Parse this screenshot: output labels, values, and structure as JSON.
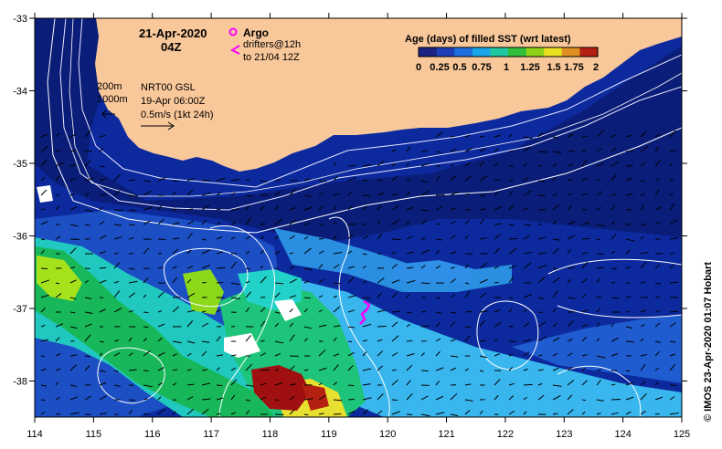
{
  "map": {
    "date_title": "21-Apr-2020",
    "time_title": "04Z",
    "argo_label": "Argo",
    "drifters_label": "drifters@12h",
    "drifters_to": "to 21/04 12Z",
    "contour_200": "200m",
    "contour_1000": "1000m",
    "product": "NRT00 GSL",
    "product_date": "19-Apr 06:00Z",
    "vector_scale": "0.5m/s (1kt 24h)",
    "credit": "© IMOS 23-Apr-2020 01:07 Hobart",
    "colorbar_title": "Age (days) of filled SST (wrt latest)",
    "colorbar_ticks": [
      "0",
      "0.25",
      "0.5",
      "0.75",
      "1",
      "1.25",
      "1.5",
      "1.75",
      "2"
    ],
    "colorbar_colors": [
      "#1a2480",
      "#1e3fb8",
      "#1f6fe0",
      "#18a6e8",
      "#20c8a0",
      "#2fbf3a",
      "#8ed21a",
      "#e8e020",
      "#e09020",
      "#b42012"
    ],
    "lon_labels": [
      "114",
      "115",
      "116",
      "117",
      "118",
      "119",
      "120",
      "121",
      "122",
      "123",
      "124",
      "125"
    ],
    "lat_labels": [
      "-33",
      "-34",
      "-35",
      "-36",
      "-37",
      "-38"
    ],
    "colors": {
      "land": "#f8c79a",
      "deep_navy": "#0a1a6e",
      "dark_blue": "#0b2a9c",
      "mid_blue": "#1d4fc8",
      "light_blue": "#38b8f0",
      "cyan": "#1cd0d8",
      "green": "#19c35a",
      "lime": "#a6e21c",
      "yellow": "#f0e030",
      "red": "#a01010",
      "argo": "#ff00ff"
    }
  }
}
